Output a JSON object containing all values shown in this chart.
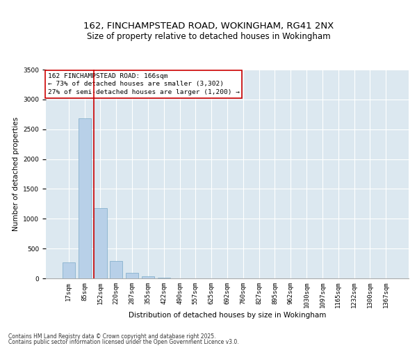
{
  "title_line1": "162, FINCHAMPSTEAD ROAD, WOKINGHAM, RG41 2NX",
  "title_line2": "Size of property relative to detached houses in Wokingham",
  "xlabel": "Distribution of detached houses by size in Wokingham",
  "ylabel": "Number of detached properties",
  "bar_color": "#b8d0e8",
  "bar_edge_color": "#7aaac8",
  "categories": [
    "17sqm",
    "85sqm",
    "152sqm",
    "220sqm",
    "287sqm",
    "355sqm",
    "422sqm",
    "490sqm",
    "557sqm",
    "625sqm",
    "692sqm",
    "760sqm",
    "827sqm",
    "895sqm",
    "962sqm",
    "1030sqm",
    "1097sqm",
    "1165sqm",
    "1232sqm",
    "1300sqm",
    "1367sqm"
  ],
  "values": [
    270,
    2680,
    1180,
    295,
    90,
    35,
    15,
    0,
    0,
    0,
    0,
    0,
    0,
    0,
    0,
    0,
    0,
    0,
    0,
    0,
    0
  ],
  "ylim": [
    0,
    3500
  ],
  "yticks": [
    0,
    500,
    1000,
    1500,
    2000,
    2500,
    3000,
    3500
  ],
  "vline_index": 1.6,
  "annotation_text": "162 FINCHAMPSTEAD ROAD: 166sqm\n← 73% of detached houses are smaller (3,302)\n27% of semi-detached houses are larger (1,200) →",
  "annotation_box_color": "#ffffff",
  "annotation_box_edge": "#cc0000",
  "vline_color": "#cc0000",
  "background_color": "#dce8f0",
  "footer_line1": "Contains HM Land Registry data © Crown copyright and database right 2025.",
  "footer_line2": "Contains public sector information licensed under the Open Government Licence v3.0.",
  "title_fontsize": 9.5,
  "subtitle_fontsize": 8.5,
  "axis_label_fontsize": 7.5,
  "tick_fontsize": 6.5,
  "annotation_fontsize": 6.8,
  "footer_fontsize": 5.5
}
